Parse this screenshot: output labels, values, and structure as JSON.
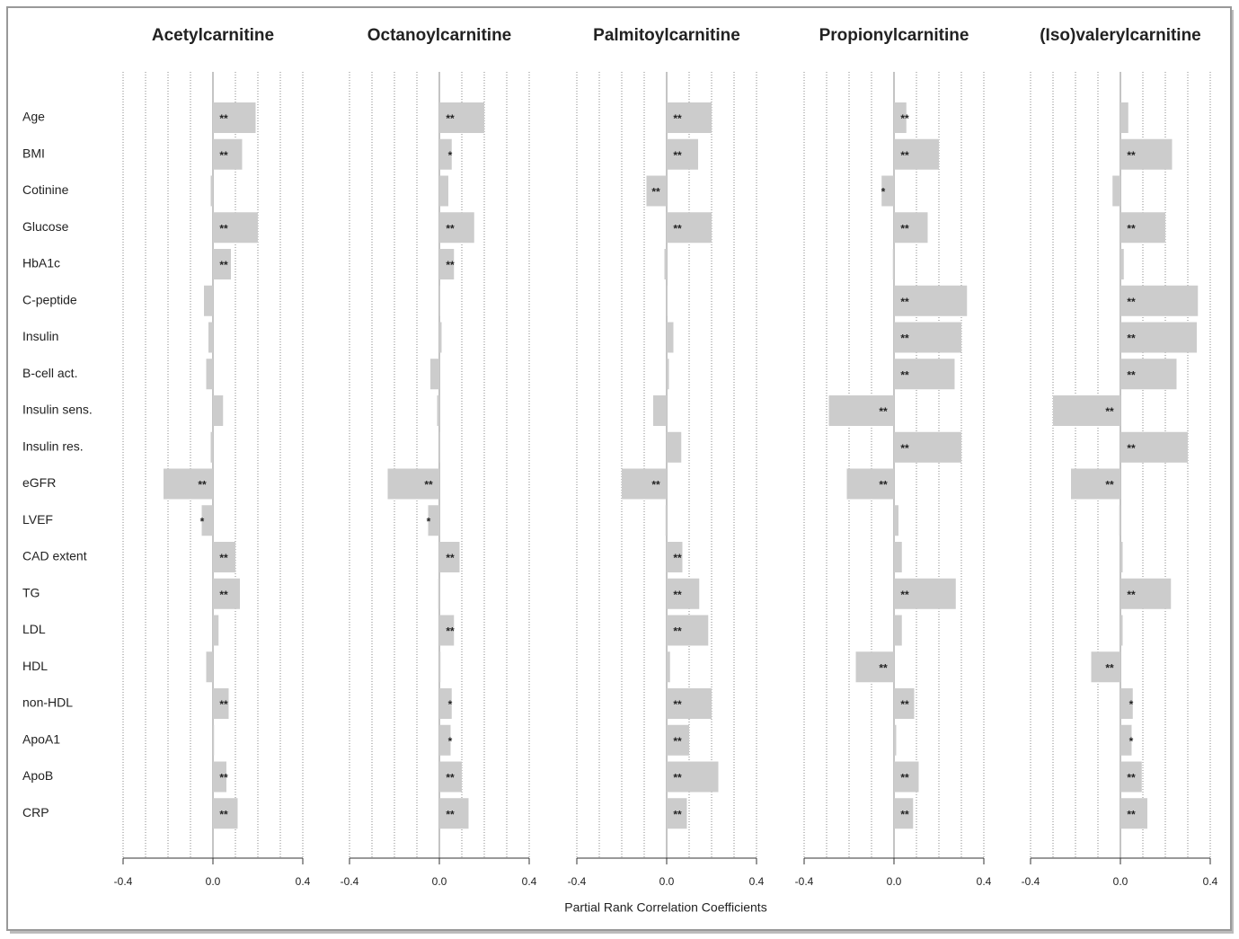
{
  "chart_data": {
    "type": "bar",
    "orientation": "horizontal",
    "categories": [
      "Age",
      "BMI",
      "Cotinine",
      "Glucose",
      "HbA1c",
      "C-peptide",
      "Insulin",
      "B-cell act.",
      "Insulin sens.",
      "Insulin res.",
      "eGFR",
      "LVEF",
      "CAD extent",
      "TG",
      "LDL",
      "HDL",
      "non-HDL",
      "ApoA1",
      "ApoB",
      "CRP"
    ],
    "xlabel": "Partial Rank Correlation Coefficients",
    "xlim": [
      -0.4,
      0.4
    ],
    "xticks": [
      -0.4,
      {
        "value": 0,
        "label": "0.0"
      },
      0.4
    ],
    "grid": [
      -0.4,
      -0.3,
      -0.2,
      -0.1,
      0,
      0.1,
      0.2,
      0.3,
      0.4
    ],
    "color": "#cccccc",
    "series": [
      {
        "name": "Acetylcarnitine",
        "values": [
          0.19,
          0.13,
          -0.01,
          0.2,
          0.08,
          -0.04,
          -0.02,
          -0.03,
          0.045,
          -0.01,
          -0.22,
          -0.05,
          0.1,
          0.12,
          0.025,
          -0.03,
          0.07,
          0.005,
          0.06,
          0.11
        ],
        "labels": [
          "**",
          "**",
          null,
          "**",
          "**",
          null,
          null,
          null,
          null,
          null,
          "**",
          "*",
          "**",
          "**",
          null,
          null,
          "**",
          null,
          "**",
          "**"
        ]
      },
      {
        "name": "Octanoylcarnitine",
        "values": [
          0.2,
          0.055,
          0.04,
          0.155,
          0.065,
          0,
          0.01,
          -0.04,
          -0.01,
          0,
          -0.23,
          -0.05,
          0.09,
          -0.005,
          0.065,
          0.005,
          0.055,
          0.05,
          0.1,
          0.13
        ],
        "labels": [
          "**",
          "*",
          null,
          "**",
          "**",
          null,
          null,
          null,
          null,
          null,
          "**",
          "*",
          "**",
          null,
          "**",
          null,
          "*",
          "*",
          "**",
          "**"
        ]
      },
      {
        "name": "Palmitoylcarnitine",
        "values": [
          0.2,
          0.14,
          -0.09,
          0.2,
          -0.01,
          0,
          0.03,
          0.01,
          -0.06,
          0.065,
          -0.2,
          -0.005,
          0.07,
          0.145,
          0.185,
          0.015,
          0.2,
          0.1,
          0.23,
          0.09
        ],
        "labels": [
          "**",
          "**",
          "**",
          "**",
          null,
          null,
          null,
          null,
          null,
          null,
          "**",
          null,
          "**",
          "**",
          "**",
          null,
          "**",
          "**",
          "**",
          "**"
        ]
      },
      {
        "name": "Propionylcarnitine",
        "values": [
          0.055,
          0.2,
          -0.055,
          0.15,
          -0.005,
          0.325,
          0.3,
          0.27,
          -0.29,
          0.3,
          -0.21,
          0.02,
          0.035,
          0.275,
          0.035,
          -0.17,
          0.09,
          0.01,
          0.11,
          0.085
        ],
        "labels": [
          "**",
          "**",
          "*",
          "**",
          null,
          "**",
          "**",
          "**",
          "**",
          "**",
          "**",
          null,
          null,
          "**",
          null,
          "**",
          "**",
          null,
          "**",
          "**"
        ]
      },
      {
        "name": "(Iso)valerylcarnitine",
        "values": [
          0.035,
          0.23,
          -0.035,
          0.2,
          0.015,
          0.345,
          0.34,
          0.25,
          -0.3,
          0.3,
          -0.22,
          -0.005,
          0.01,
          0.225,
          0.01,
          -0.13,
          0.055,
          0.05,
          0.095,
          0.12
        ],
        "labels": [
          null,
          "**",
          null,
          "**",
          null,
          "**",
          "**",
          "**",
          "**",
          "**",
          "**",
          null,
          null,
          "**",
          null,
          "**",
          "*",
          "*",
          "**",
          "**"
        ]
      }
    ]
  }
}
